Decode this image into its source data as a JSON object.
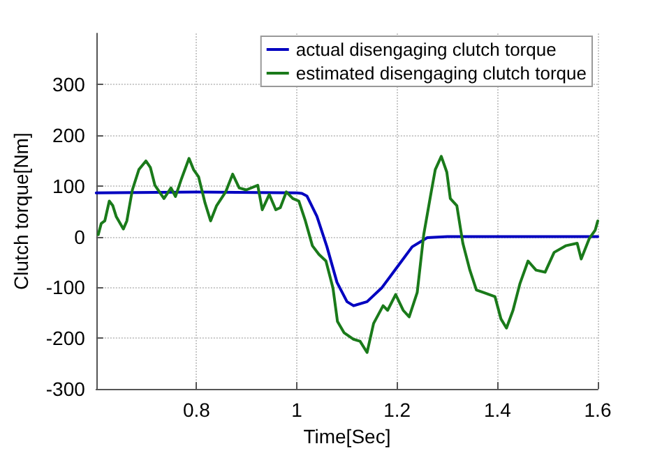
{
  "chart_data": {
    "type": "line",
    "xlabel": "Time[Sec]",
    "ylabel": "Clutch torque[Nm]",
    "xlim": [
      0.6,
      1.6
    ],
    "xticks": [
      0.8,
      1,
      1.2,
      1.4,
      1.6
    ],
    "ylim": [
      -300,
      400
    ],
    "yticks": [
      -300,
      -200,
      -100,
      0,
      100,
      200,
      300
    ],
    "grid": true,
    "legend": "top right",
    "marker": "none",
    "line_style": "solid",
    "series": [
      {
        "name": "actual disengaging clutch torque",
        "color": "#0000c0",
        "x": [
          0.6,
          0.8,
          1.0,
          1.01,
          1.02,
          1.04,
          1.06,
          1.08,
          1.1,
          1.113,
          1.14,
          1.17,
          1.2,
          1.23,
          1.26,
          1.3,
          1.6
        ],
        "values": [
          86,
          88,
          86,
          85,
          80,
          40,
          -20,
          -90,
          -128,
          -136,
          -128,
          -100,
          -60,
          -20,
          -2,
          0,
          0
        ]
      },
      {
        "name": "estimated disengaging clutch torque",
        "color": "#1a7a1a",
        "x": [
          0.604,
          0.61,
          0.617,
          0.626,
          0.633,
          0.64,
          0.654,
          0.661,
          0.672,
          0.685,
          0.699,
          0.708,
          0.717,
          0.735,
          0.749,
          0.758,
          0.77,
          0.785,
          0.794,
          0.804,
          0.817,
          0.828,
          0.84,
          0.858,
          0.872,
          0.885,
          0.899,
          0.922,
          0.931,
          0.945,
          0.958,
          0.967,
          0.979,
          0.992,
          1.004,
          1.017,
          1.031,
          1.044,
          1.058,
          1.072,
          1.081,
          1.094,
          1.113,
          1.126,
          1.14,
          1.153,
          1.172,
          1.181,
          1.197,
          1.212,
          1.224,
          1.24,
          1.253,
          1.267,
          1.276,
          1.288,
          1.299,
          1.306,
          1.319,
          1.331,
          1.345,
          1.358,
          1.372,
          1.395,
          1.407,
          1.418,
          1.431,
          1.445,
          1.461,
          1.477,
          1.495,
          1.513,
          1.536,
          1.559,
          1.567,
          1.583,
          1.595,
          1.6
        ],
        "values": [
          4,
          26,
          31,
          70,
          61,
          39,
          15,
          31,
          92,
          132,
          149,
          136,
          101,
          75,
          96,
          79,
          114,
          154,
          132,
          118,
          66,
          31,
          61,
          88,
          123,
          96,
          92,
          101,
          53,
          83,
          53,
          57,
          88,
          75,
          70,
          31,
          -18,
          -35,
          -48,
          -101,
          -167,
          -189,
          -202,
          -206,
          -228,
          -171,
          -136,
          -145,
          -114,
          -145,
          -158,
          -110,
          4,
          83,
          132,
          158,
          127,
          75,
          61,
          -13,
          -66,
          -105,
          -110,
          -118,
          -162,
          -180,
          -145,
          -92,
          -48,
          -66,
          -70,
          -31,
          -18,
          -13,
          -44,
          -4,
          13,
          31
        ]
      }
    ]
  }
}
